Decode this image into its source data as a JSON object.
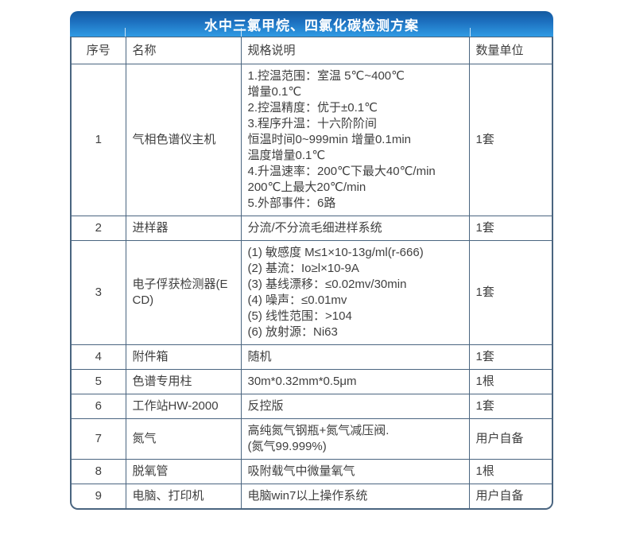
{
  "title": "水中三氯甲烷、四氯化碳检测方案",
  "columns": [
    "序号",
    "名称",
    "规格说明",
    "数量单位"
  ],
  "rows": [
    {
      "no": "1",
      "name": "气相色谱仪主机",
      "spec": [
        "1.控温范围：室温 5℃~400℃",
        "增量0.1℃",
        "2.控温精度：优于±0.1℃",
        "3.程序升温：十六阶阶间",
        "恒温时间0~999min 增量0.1min",
        "温度增量0.1℃",
        "4.升温速率：200℃下最大40℃/min",
        "200℃上最大20℃/min",
        "5.外部事件：6路"
      ],
      "qty": "1套"
    },
    {
      "no": "2",
      "name": "进样器",
      "spec": [
        "分流/不分流毛细进样系统"
      ],
      "qty": "1套"
    },
    {
      "no": "3",
      "name": "电子俘获检测器(ECD)",
      "spec": [
        "(1) 敏感度 M≤1×10-13g/ml(r-666)",
        "(2) 基流：Io≥l×10-9A",
        "(3) 基线漂移：≤0.02mv/30min",
        "(4) 噪声：≤0.01mv",
        "(5) 线性范围：>104",
        "(6) 放射源：Ni63"
      ],
      "qty": "1套"
    },
    {
      "no": "4",
      "name": "附件箱",
      "spec": [
        "随机"
      ],
      "qty": "1套"
    },
    {
      "no": "5",
      "name": "色谱专用柱",
      "spec": [
        "30m*0.32mm*0.5μm"
      ],
      "qty": "1根"
    },
    {
      "no": "6",
      "name": "工作站HW-2000",
      "spec": [
        "反控版"
      ],
      "qty": "1套"
    },
    {
      "no": "7",
      "name": "氮气",
      "spec": [
        "高纯氮气钢瓶+氮气减压阀.",
        "(氮气99.999%)"
      ],
      "qty": "用户自备"
    },
    {
      "no": "8",
      "name": "脱氧管",
      "spec": [
        "吸附载气中微量氧气"
      ],
      "qty": "1根"
    },
    {
      "no": "9",
      "name": "电脑、打印机",
      "spec": [
        "电脑win7以上操作系统"
      ],
      "qty": "用户自备"
    }
  ],
  "colors": {
    "title_gradient_top": "#155a9f",
    "title_gradient_bottom": "#2f9be4",
    "title_text": "#ffffff",
    "border": "#4a6580",
    "body_text": "#3f3f3f",
    "cell_background": "#ffffff"
  }
}
